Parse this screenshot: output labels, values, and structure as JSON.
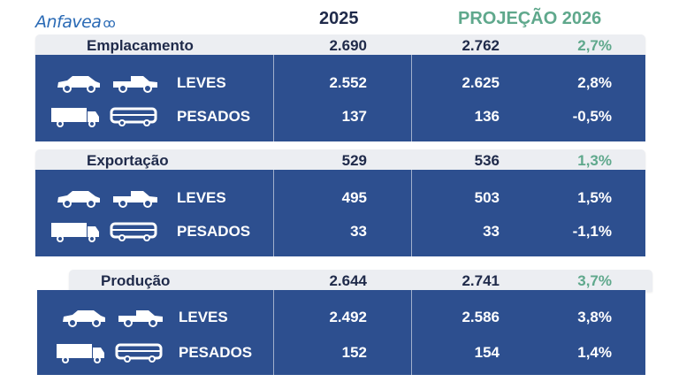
{
  "brand": {
    "name": "Anfavea"
  },
  "headers": {
    "year": "2025",
    "projection": "PROJEÇÃO 2026"
  },
  "colors": {
    "panel": "#2d4f8f",
    "band": "#eceef2",
    "accent_green": "#5fa88c",
    "text_dark": "#1f2a4a"
  },
  "sections": [
    {
      "title": "Emplacamento",
      "v2025": "2.690",
      "v2026": "2.762",
      "pct": "2,7%",
      "rows": [
        {
          "label": "LEVES",
          "icons": [
            "car-icon",
            "pickup-icon"
          ],
          "v2025": "2.552",
          "v2026": "2.625",
          "pct": "2,8%"
        },
        {
          "label": "PESADOS",
          "icons": [
            "truck-icon",
            "bus-icon"
          ],
          "v2025": "137",
          "v2026": "136",
          "pct": "-0,5%"
        }
      ]
    },
    {
      "title": "Exportação",
      "v2025": "529",
      "v2026": "536",
      "pct": "1,3%",
      "rows": [
        {
          "label": "LEVES",
          "icons": [
            "car-icon",
            "pickup-icon"
          ],
          "v2025": "495",
          "v2026": "503",
          "pct": "1,5%"
        },
        {
          "label": "PESADOS",
          "icons": [
            "truck-icon",
            "bus-icon"
          ],
          "v2025": "33",
          "v2026": "33",
          "pct": "-1,1%"
        }
      ]
    },
    {
      "title": "Produção",
      "v2025": "2.644",
      "v2026": "2.741",
      "pct": "3,7%",
      "rows": [
        {
          "label": "LEVES",
          "icons": [
            "car-icon",
            "pickup-icon"
          ],
          "v2025": "2.492",
          "v2026": "2.586",
          "pct": "3,8%"
        },
        {
          "label": "PESADOS",
          "icons": [
            "truck-icon",
            "bus-icon"
          ],
          "v2025": "152",
          "v2026": "154",
          "pct": "1,4%"
        }
      ]
    }
  ]
}
